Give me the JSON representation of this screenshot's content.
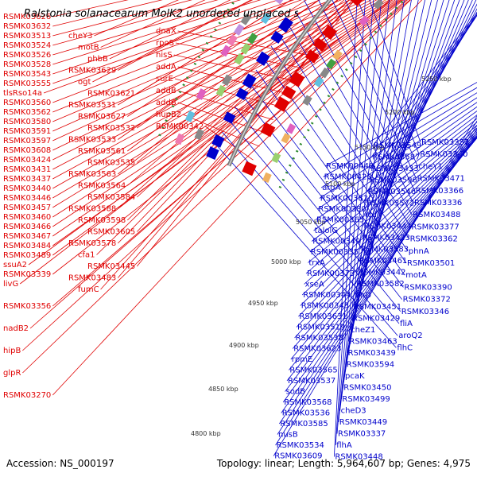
{
  "title": "Ralstonia solanacearum MolK2 unordered unplaced scaffolds, w...",
  "accession": "Accession: NS_000197",
  "summary": "Topology: linear; Length: 5,964,607 bp; Genes: 4,975",
  "colors": {
    "forward": "#e00000",
    "reverse": "#0000cc",
    "backbone": "#7a7a7a",
    "tick": "#2f8a2f"
  },
  "scale_ticks": [
    "5250 kbp",
    "5200 kbp",
    "5150 kbp",
    "5100 kbp",
    "5050 kbp",
    "5000 kbp",
    "4950 kbp",
    "4900 kbp",
    "4850 kbp",
    "4800 kbp"
  ],
  "left_labels": [
    "RSMK03626",
    "RSMK03632",
    "RSMK03513",
    "RSMK03524",
    "RSMK03526",
    "RSMK03528",
    "RSMK03543",
    "RSMK03555",
    "tlsRso14a",
    "RSMK03560",
    "RSMK03562",
    "RSMK03580",
    "RSMK03591",
    "RSMK03597",
    "RSMK03608",
    "RSMK03424",
    "RSMK03431",
    "RSMK03437",
    "RSMK03440",
    "RSMK03446",
    "RSMK03457",
    "RSMK03460",
    "RSMK03466",
    "RSMK03467",
    "RSMK03484",
    "RSMK03489",
    "ssuA2",
    "RSMK03339",
    "livG",
    "RSMK03356",
    "nadB2",
    "hipB",
    "glpR",
    "RSMK03270",
    "cheY3",
    "motB",
    "phbB",
    "RSMK03629",
    "ogt",
    "RSMK03621",
    "RSMK03531",
    "RSMK03627",
    "RSMK03532",
    "RSMK03533",
    "RSMK03561",
    "RSMK03535",
    "RSMK03563",
    "RSMK03564",
    "RSMK03584",
    "RSMK03588",
    "RSMK03598",
    "RSMK03605",
    "RSMK03578",
    "cfa1",
    "RSMK03445",
    "RSMK03483",
    "fumC",
    "dnaX",
    "rpoS",
    "hisS",
    "addA",
    "surE",
    "addB",
    "addB",
    "hupB2",
    "RSMK00342"
  ],
  "right_labels": [
    "RSMK00440",
    "RSMK00420",
    "argA",
    "RSMK00382",
    "RSMK00380",
    "RSMK00365",
    "talolG",
    "RSMK00349",
    "RSMK00335",
    "trxA",
    "RSMK00373",
    "xseA",
    "RSMK00344",
    "RSMK00345",
    "RSMK03631",
    "RSMK03519",
    "RSMK03538",
    "RSMK03623",
    "rpmE",
    "RSMK03565",
    "RSMK03537",
    "sodB",
    "RSMK03568",
    "RSMK03536",
    "RSMK03585",
    "nusB",
    "RSMK03534",
    "RSMK03609",
    "RSMK03549",
    "RSMK03587",
    "RSMK03433",
    "RSMK03596",
    "RSMK03546",
    "RSMK03572",
    "icd",
    "RSMK03444",
    "RSMK03423",
    "RSMK03583",
    "RSMK03461",
    "RSMK03442",
    "RSMK03582",
    "flhD",
    "RSMK03451",
    "RSMK03429",
    "cheZ1",
    "RSMK03463",
    "RSMK03439",
    "RSMK03594",
    "pcaK",
    "RSMK03450",
    "RSMK03499",
    "cheD3",
    "RSMK03449",
    "RSMK03337",
    "flhA",
    "RSMK03448",
    "RSMK03357",
    "RSMK03340",
    "cheY1",
    "RSMK03471",
    "RSMK03366",
    "RSMK03336",
    "RSMK03488",
    "RSMK03377",
    "RSMK03362",
    "phnA",
    "RSMK03501",
    "motA",
    "RSMK03390",
    "RSMK03372",
    "RSMK03346",
    "fliA",
    "aroQ2",
    "flhC"
  ]
}
